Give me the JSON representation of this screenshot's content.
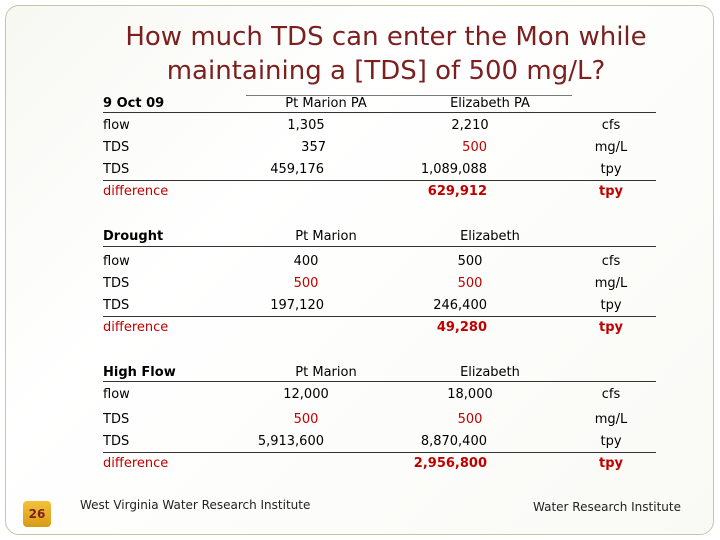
{
  "title": {
    "line1": "How much TDS can enter the Mon while",
    "line2": "maintaining a [TDS] of 500 mg/L?"
  },
  "sections": {
    "oct": {
      "header": [
        "9 Oct 09",
        "Pt Marion  PA",
        "Elizabeth PA",
        ""
      ],
      "rows": [
        {
          "label": "flow",
          "pt": "1,305",
          "el": "2,210",
          "unit": "cfs"
        },
        {
          "label": "TDS",
          "pt": "357",
          "el": "500",
          "unit": "mg/L"
        },
        {
          "label": "TDS",
          "pt": "459,176",
          "el": "1,089,088",
          "unit": "tpy"
        },
        {
          "label": "difference",
          "pt": "",
          "el": "629,912",
          "unit": "tpy"
        }
      ]
    },
    "drought": {
      "header": [
        "Drought",
        "Pt Marion",
        "Elizabeth",
        ""
      ],
      "rows": [
        {
          "label": "flow",
          "pt": "400",
          "el": "500",
          "unit": "cfs"
        },
        {
          "label": "TDS",
          "pt": "500",
          "el": "500",
          "unit": "mg/L"
        },
        {
          "label": "TDS",
          "pt": "197,120",
          "el": "246,400",
          "unit": "tpy"
        },
        {
          "label": "difference",
          "pt": "",
          "el": "49,280",
          "unit": "tpy"
        }
      ]
    },
    "high": {
      "header": [
        "High Flow",
        "Pt Marion",
        "Elizabeth",
        ""
      ],
      "rows": [
        {
          "label": "flow",
          "pt": "12,000",
          "el": "18,000",
          "unit": "cfs"
        },
        {
          "label": "TDS",
          "pt": "500",
          "el": "500",
          "unit": "mg/L"
        },
        {
          "label": "TDS",
          "pt": "5,913,600",
          "el": "8,870,400",
          "unit": "tpy"
        },
        {
          "label": "difference",
          "pt": "",
          "el": "2,956,800",
          "unit": "tpy"
        }
      ]
    }
  },
  "footer": {
    "page_number": "26",
    "left": "West Virginia Water Research Institute",
    "right": "Water Research Institute"
  },
  "colors": {
    "title": "#7b1f1f",
    "highlight": "#c00000",
    "badge": "#e8b22a"
  }
}
